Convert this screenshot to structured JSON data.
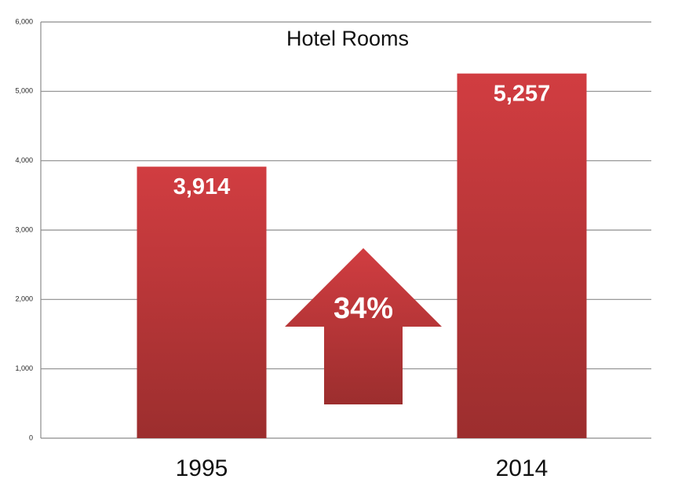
{
  "chart_data": {
    "type": "bar",
    "title": "Hotel Rooms",
    "categories": [
      "1995",
      "2014"
    ],
    "values": [
      3914,
      5257
    ],
    "value_labels": [
      "3,914",
      "5,257"
    ],
    "color": "#d13d41",
    "ylim": [
      0,
      6000
    ],
    "yticks": [
      0,
      {
        "value": 1000,
        "label": "1,000"
      },
      {
        "value": 2000,
        "label": "2,000"
      },
      {
        "value": 3000,
        "label": "3,000"
      },
      {
        "value": 4000,
        "label": "4,000"
      },
      {
        "value": 5000,
        "label": "5,000"
      },
      {
        "value": 6000,
        "label": "6,000"
      }
    ],
    "grid": true,
    "annotation": "34%"
  }
}
